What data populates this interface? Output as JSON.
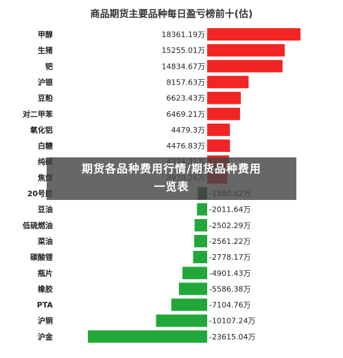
{
  "chart_data": {
    "type": "bar",
    "orientation": "horizontal",
    "title": "商品期货主要品种每日盈亏榜前十(估)",
    "unit": "万",
    "categories": [
      "甲醇",
      "生猪",
      "钯",
      "沪银",
      "豆粕",
      "对二甲苯",
      "氧化铝",
      "白糖",
      "纯碱",
      "焦煤",
      "20号胶",
      "豆油",
      "低硫燃油",
      "菜油",
      "碳酸锂",
      "瓶片",
      "橡胶",
      "PTA",
      "沪铜",
      "沪金"
    ],
    "values": [
      18361.19,
      15255.01,
      14834.67,
      8157.63,
      6623.43,
      6469.21,
      4479.3,
      4476.83,
      4324.31,
      3970.26,
      -1880.62,
      -2011.64,
      -2502.29,
      -2561.22,
      -2778.17,
      -4901.43,
      -5586.38,
      -7104.76,
      -10107.24,
      -23615.04
    ],
    "labels": [
      "18361.19万",
      "15255.01万",
      "14834.67万",
      "8157.63万",
      "6623.43万",
      "6469.21万",
      "4479.3万",
      "4476.83万",
      "4324.31万",
      "3970.26万",
      "-1880.62万",
      "-2011.64万",
      "-2502.29万",
      "-2561.22万",
      "-2778.17万",
      "-4901.43万",
      "-5586.38万",
      "-7104.76万",
      "-10107.24万",
      "-23615.04万"
    ],
    "colors": {
      "positive": "#f12525",
      "negative": "#22a83a",
      "highlight": "#1f6b2a"
    },
    "highlight_index": 10
  },
  "overlay": {
    "line1": "期货各品种费用行情/期货品种费用",
    "line2": "一览表"
  }
}
